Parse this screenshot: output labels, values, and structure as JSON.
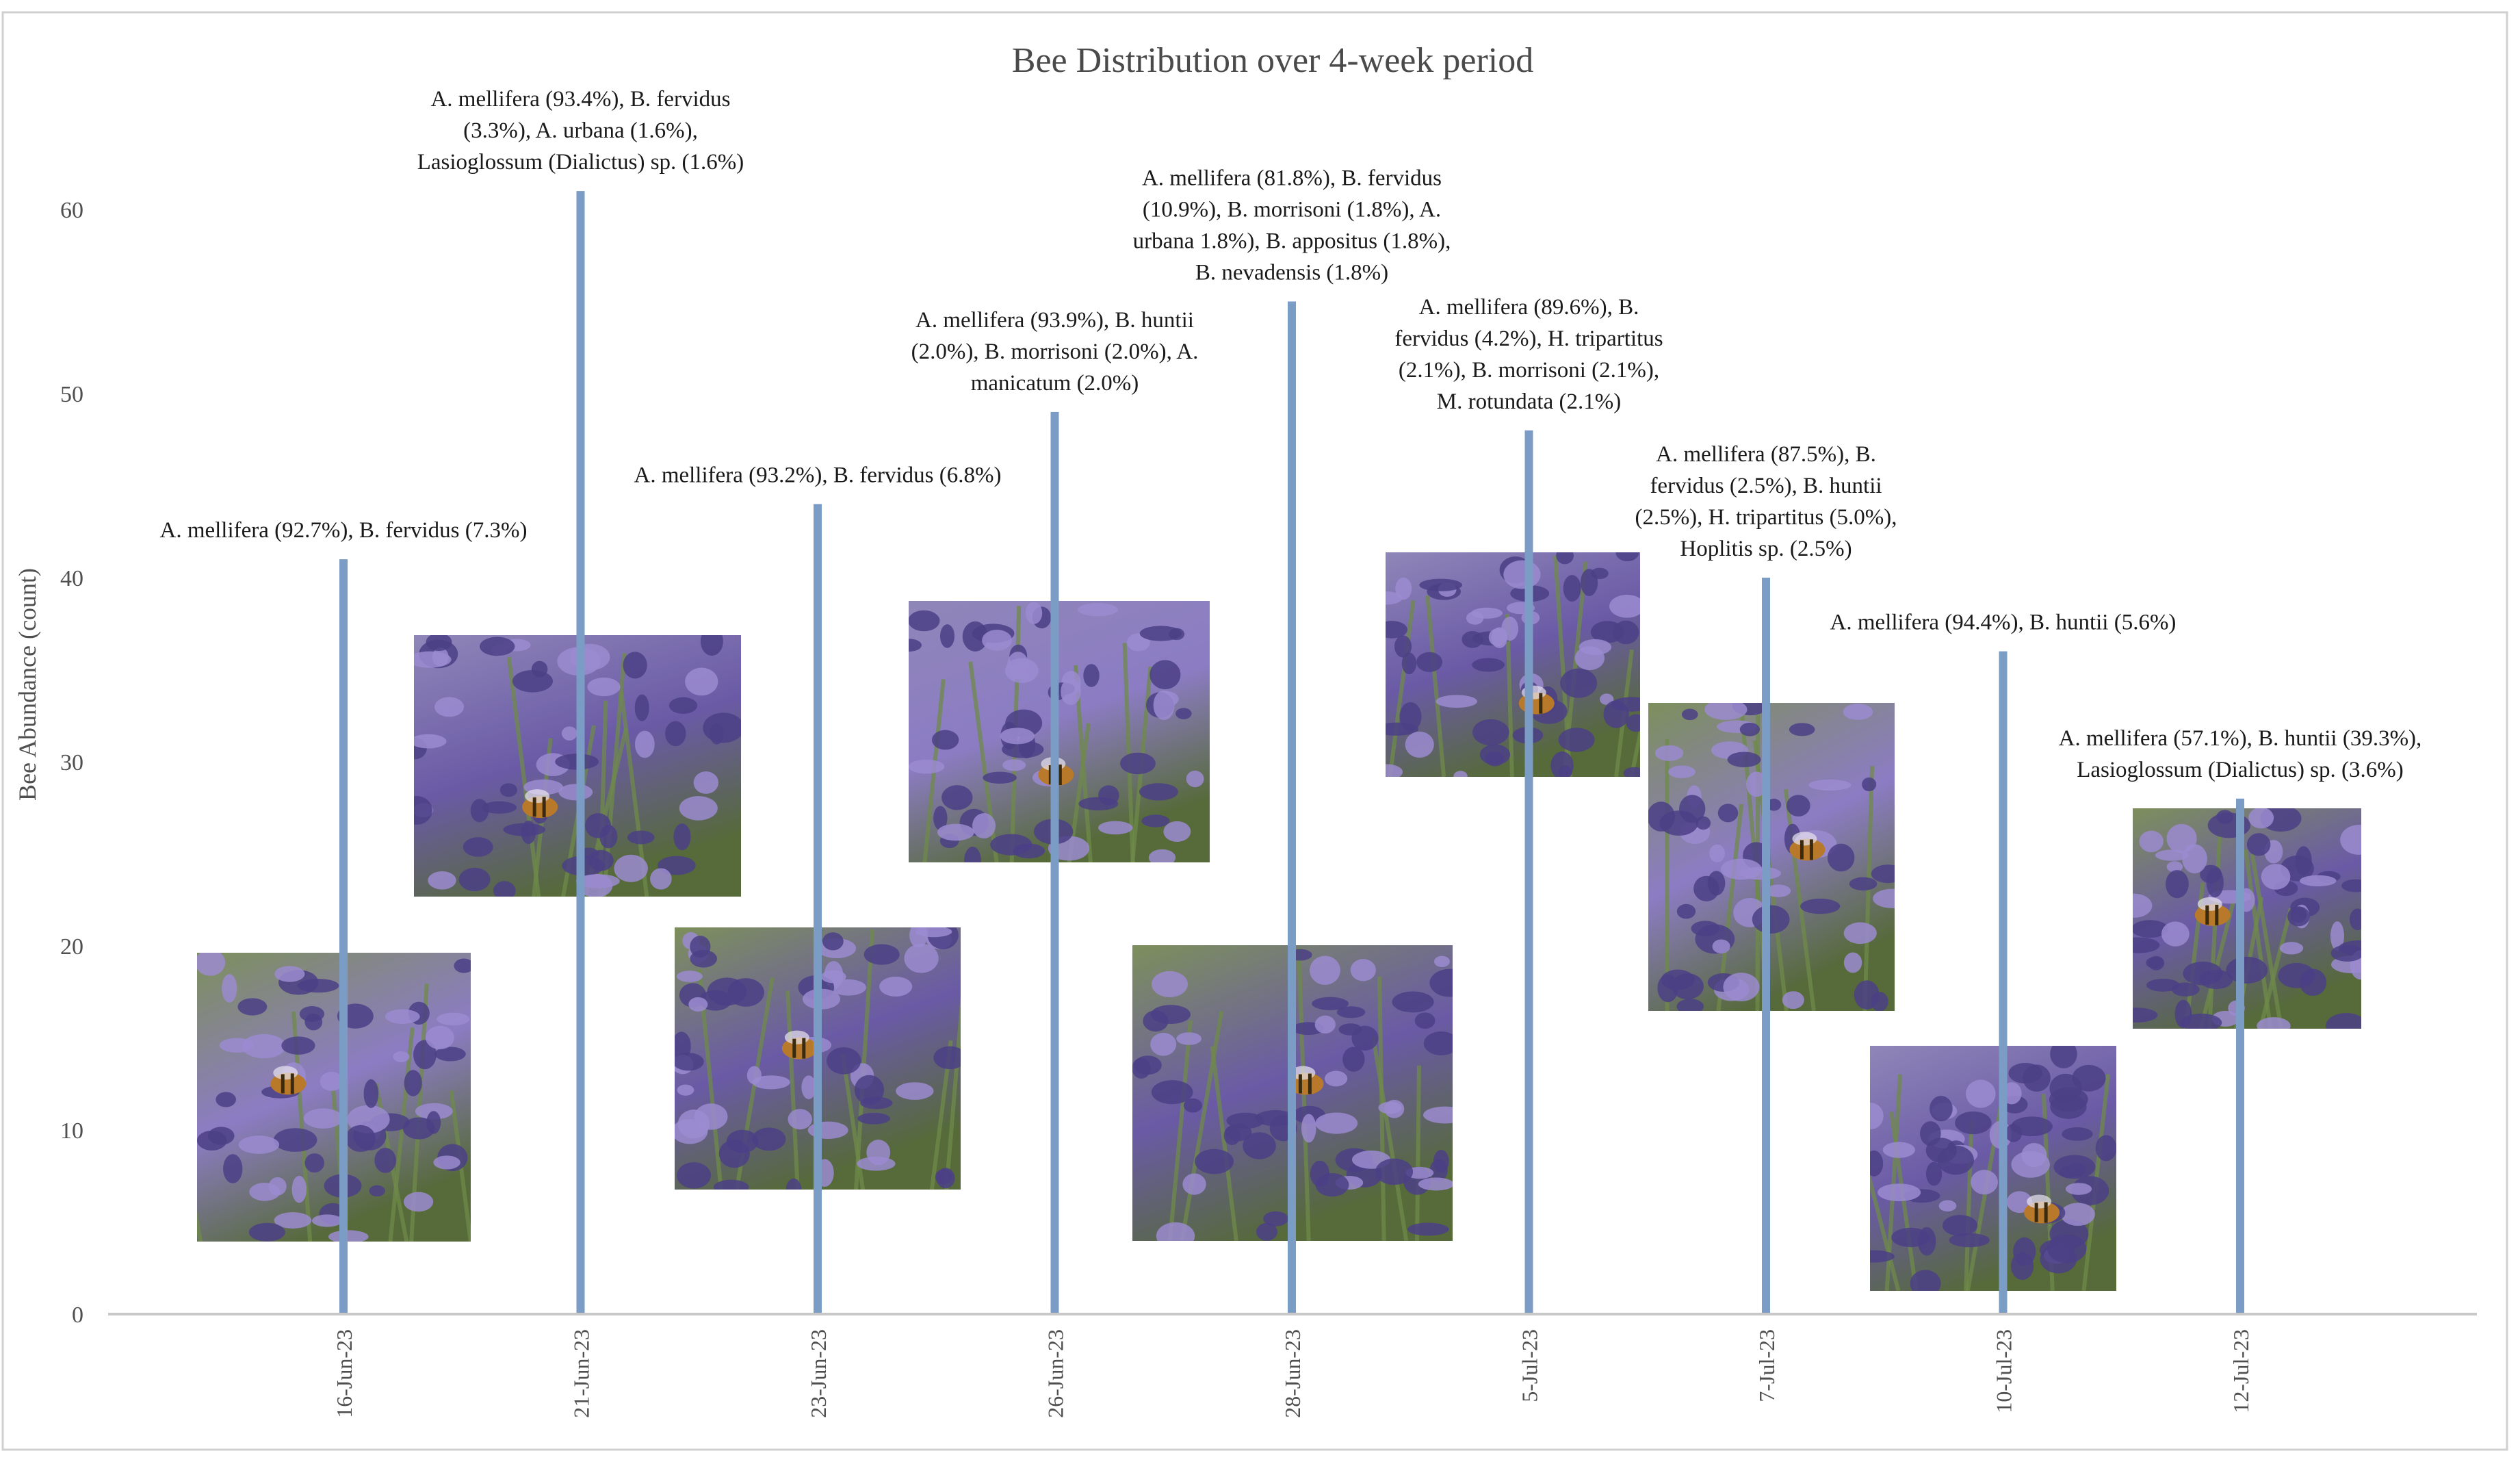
{
  "colors": {
    "bar": "#7b9cc4",
    "axis": "#c8c8c8",
    "border": "#d0d0d0",
    "tick_text": "#4f4f4f",
    "title_text": "#4a4a4a",
    "annotation_text": "#1a1a1a",
    "lavender_dark": "#4b3f86",
    "lavender_light": "#9b8bd0",
    "foliage": "#6f8a4a",
    "bee": "#b87a2a"
  },
  "chart_data": {
    "type": "bar",
    "title": "Bee Distribution over 4-week period",
    "xlabel": "",
    "ylabel": "Bee Abundance (count)",
    "ylim": [
      0,
      70
    ],
    "yticks": [
      0,
      10,
      20,
      30,
      40,
      50,
      60
    ],
    "grid": false,
    "legend": "none",
    "categories": [
      "16-Jun-23",
      "21-Jun-23",
      "23-Jun-23",
      "26-Jun-23",
      "28-Jun-23",
      "5-Jul-23",
      "7-Jul-23",
      "10-Jul-23",
      "12-Jul-23"
    ],
    "values": [
      41,
      61,
      44,
      49,
      55,
      48,
      40,
      36,
      28
    ],
    "annotations": [
      [
        "A. mellifera (92.7%), B. fervidus (7.3%)"
      ],
      [
        "A. mellifera (93.4%), B. fervidus",
        "(3.3%), A. urbana (1.6%),",
        "Lasioglossum (Dialictus) sp. (1.6%)"
      ],
      [
        "A. mellifera (93.2%), B. fervidus (6.8%)"
      ],
      [
        "A. mellifera (93.9%), B. huntii",
        "(2.0%), B. morrisoni (2.0%), A.",
        "manicatum (2.0%)"
      ],
      [
        "A. mellifera (81.8%), B. fervidus",
        "(10.9%), B. morrisoni (1.8%), A.",
        "urbana 1.8%), B. appositus (1.8%),",
        "B. nevadensis (1.8%)"
      ],
      [
        "A. mellifera (89.6%), B.",
        "fervidus (4.2%), H. tripartitus",
        "(2.1%), B. morrisoni (2.1%),",
        "M. rotundata (2.1%)"
      ],
      [
        "A. mellifera (87.5%), B.",
        "fervidus (2.5%), B. huntii",
        "(2.5%), H. tripartitus (5.0%),",
        "Hoplitis sp. (2.5%)"
      ],
      [
        "A. mellifera (94.4%), B. huntii (5.6%)"
      ],
      [
        "A. mellifera (57.1%), B. huntii (39.3%),",
        "Lasioglossum (Dialictus) sp. (3.6%)"
      ]
    ]
  }
}
